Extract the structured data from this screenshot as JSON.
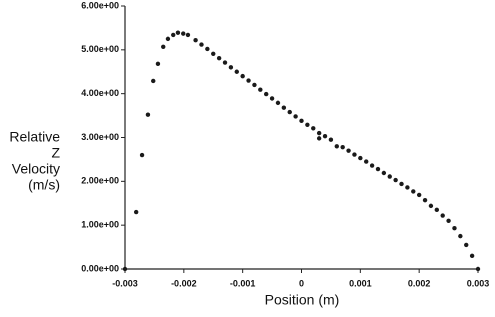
{
  "chart_data": {
    "type": "scatter",
    "x_label": "Position (m)",
    "y_label": [
      "Relative",
      "Z",
      "Velocity",
      "(m/s)"
    ],
    "color": "#1a1a1a",
    "x": [
      -0.003,
      -0.00281,
      -0.00271,
      -0.00261,
      -0.00252,
      -0.00244,
      -0.00235,
      -0.00227,
      -0.00218,
      -0.0021,
      -0.00201,
      -0.00193,
      -0.0018,
      -0.0017,
      -0.0016,
      -0.0015,
      -0.0014,
      -0.0013,
      -0.0012,
      -0.0011,
      -0.001,
      -0.0009,
      -0.0008,
      -0.0007,
      -0.0006,
      -0.0005,
      -0.0004,
      -0.0003,
      -0.0002,
      -0.0001,
      0,
      0.0001,
      0.0002,
      0.0003,
      0.0003,
      0.0004,
      0.0005,
      0.0006,
      0.0007,
      0.0008,
      0.0009,
      0.001,
      0.0011,
      0.0012,
      0.0013,
      0.0014,
      0.0015,
      0.0016,
      0.0017,
      0.0018,
      0.0019,
      0.002,
      0.0021,
      0.0022,
      0.0023,
      0.0024,
      0.0025,
      0.0026,
      0.0027,
      0.0028,
      0.0029,
      0.003
    ],
    "values": [
      0,
      1.3,
      2.6,
      3.52,
      4.29,
      4.68,
      5.07,
      5.25,
      5.34,
      5.39,
      5.37,
      5.34,
      5.22,
      5.12,
      5.02,
      4.91,
      4.81,
      4.71,
      4.6,
      4.5,
      4.4,
      4.3,
      4.2,
      4.09,
      3.99,
      3.89,
      3.79,
      3.68,
      3.58,
      3.48,
      3.38,
      3.29,
      3.21,
      3.1,
      2.98,
      3.03,
      2.95,
      2.8,
      2.78,
      2.7,
      2.61,
      2.53,
      2.45,
      2.36,
      2.28,
      2.19,
      2.11,
      2.03,
      1.94,
      1.86,
      1.77,
      1.69,
      1.57,
      1.44,
      1.35,
      1.22,
      1.1,
      0.93,
      0.75,
      0.55,
      0.3,
      0
    ],
    "xlim": [
      -0.003,
      0.003
    ],
    "xticks": [
      -0.003,
      -0.002,
      -0.001,
      0,
      0.001,
      0.002,
      0.003
    ],
    "ylim": [
      0,
      6
    ],
    "yticks": [
      {
        "value": 0,
        "label": "0.00e+00"
      },
      {
        "value": 1,
        "label": "1.00e+00"
      },
      {
        "value": 2,
        "label": "2.00e+00"
      },
      {
        "value": 3,
        "label": "3.00e+00"
      },
      {
        "value": 4,
        "label": "4.00e+00"
      },
      {
        "value": 5,
        "label": "5.00e+00"
      },
      {
        "value": 6,
        "label": "6.00e+00"
      }
    ]
  }
}
